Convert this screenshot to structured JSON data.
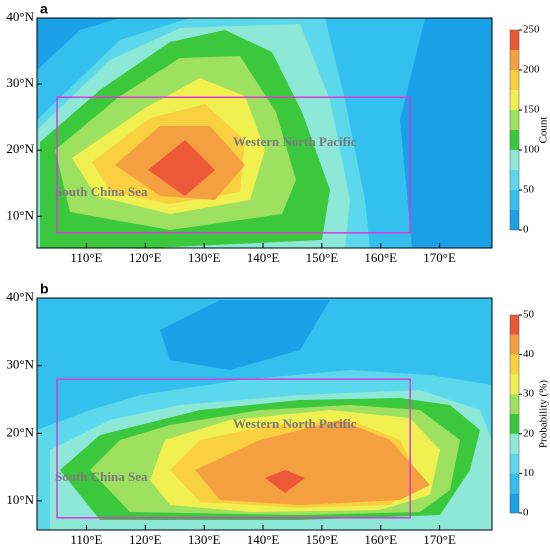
{
  "chart_data": [
    {
      "type": "contour",
      "panel_label": "a",
      "xlim": [
        101.6,
        178.9
      ],
      "ylim": [
        5.2,
        40
      ],
      "xticks": [
        {
          "value": 110,
          "label": "110°E"
        },
        {
          "value": 120,
          "label": "120°E"
        },
        {
          "value": 130,
          "label": "130°E"
        },
        {
          "value": 140,
          "label": "140°E"
        },
        {
          "value": 150,
          "label": "150°E"
        },
        {
          "value": 160,
          "label": "160°E"
        },
        {
          "value": 170,
          "label": "170°E"
        }
      ],
      "yticks": [
        {
          "value": 10,
          "label": "10°N"
        },
        {
          "value": 20,
          "label": "20°N"
        },
        {
          "value": 30,
          "label": "30°N"
        },
        {
          "value": 40,
          "label": "40°N"
        }
      ],
      "box": {
        "xlim": [
          105,
          165
        ],
        "ylim": [
          7.5,
          28
        ],
        "color": "#d83ad8"
      },
      "annotations": [
        "Western North Pacific",
        "South China Sea"
      ],
      "colorbar": {
        "label": "Count",
        "lim": [
          0,
          250
        ],
        "ticks": [
          0,
          50,
          100,
          150,
          200,
          250
        ],
        "colors": [
          "#1aa0e6",
          "#33c0ee",
          "#5cd8ec",
          "#8ee8d8",
          "#3cc83c",
          "#9ee060",
          "#f0f050",
          "#f8d040",
          "#f4a040",
          "#ec5838"
        ]
      }
    },
    {
      "type": "contour",
      "panel_label": "b",
      "xlim": [
        101.6,
        178.9
      ],
      "ylim": [
        5.7,
        40
      ],
      "xticks": [
        {
          "value": 110,
          "label": "110°E"
        },
        {
          "value": 120,
          "label": "120°E"
        },
        {
          "value": 130,
          "label": "130°E"
        },
        {
          "value": 140,
          "label": "140°E"
        },
        {
          "value": 150,
          "label": "150°E"
        },
        {
          "value": 160,
          "label": "160°E"
        },
        {
          "value": 170,
          "label": "170°E"
        }
      ],
      "yticks": [
        {
          "value": 10,
          "label": "10°N"
        },
        {
          "value": 20,
          "label": "20°N"
        },
        {
          "value": 30,
          "label": "30°N"
        },
        {
          "value": 40,
          "label": "40°N"
        }
      ],
      "box": {
        "xlim": [
          105,
          165
        ],
        "ylim": [
          7.5,
          28
        ],
        "color": "#d83ad8"
      },
      "annotations": [
        "Western North Pacific",
        "South China Sea"
      ],
      "colorbar": {
        "label": "Probability (%)",
        "lim": [
          0,
          50
        ],
        "ticks": [
          0,
          10,
          20,
          30,
          40,
          50
        ],
        "colors": [
          "#1aa0e6",
          "#33c0ee",
          "#5cd8ec",
          "#8ee8d8",
          "#3cc83c",
          "#9ee060",
          "#f0f050",
          "#f8d040",
          "#f4a040",
          "#ec5838"
        ]
      }
    }
  ]
}
